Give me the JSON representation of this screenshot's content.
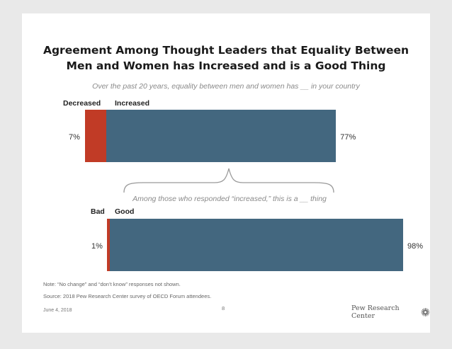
{
  "chart_data": [
    {
      "type": "bar",
      "title": "Agreement Among Thought Leaders that Equality Between\nMen and Women has Increased and is a Good Thing",
      "subtitle": "Over the past 20 years, equality between men and women has __ in your country",
      "orientation": "horizontal-stacked",
      "categories": [
        "Decreased",
        "Increased"
      ],
      "values": [
        7,
        77
      ],
      "value_labels": [
        "7%",
        "77%"
      ],
      "colors": [
        "#c13b26",
        "#43677f"
      ]
    },
    {
      "type": "bar",
      "subtitle": "Among those who responded “increased,” this is a __ thing",
      "orientation": "horizontal-stacked",
      "categories": [
        "Bad",
        "Good"
      ],
      "values": [
        1,
        98
      ],
      "value_labels": [
        "1%",
        "98%"
      ],
      "colors": [
        "#c13b26",
        "#43677f"
      ]
    }
  ],
  "footer": {
    "note": "Note: “No change” and “don’t know” responses not shown.",
    "source": "Source: 2018 Pew Research Center survey of OECD Forum attendees.",
    "date": "June 4, 2018",
    "page_number": "8",
    "logo_text": "Pew Research Center",
    "logo_icon": "sunburst-icon"
  }
}
